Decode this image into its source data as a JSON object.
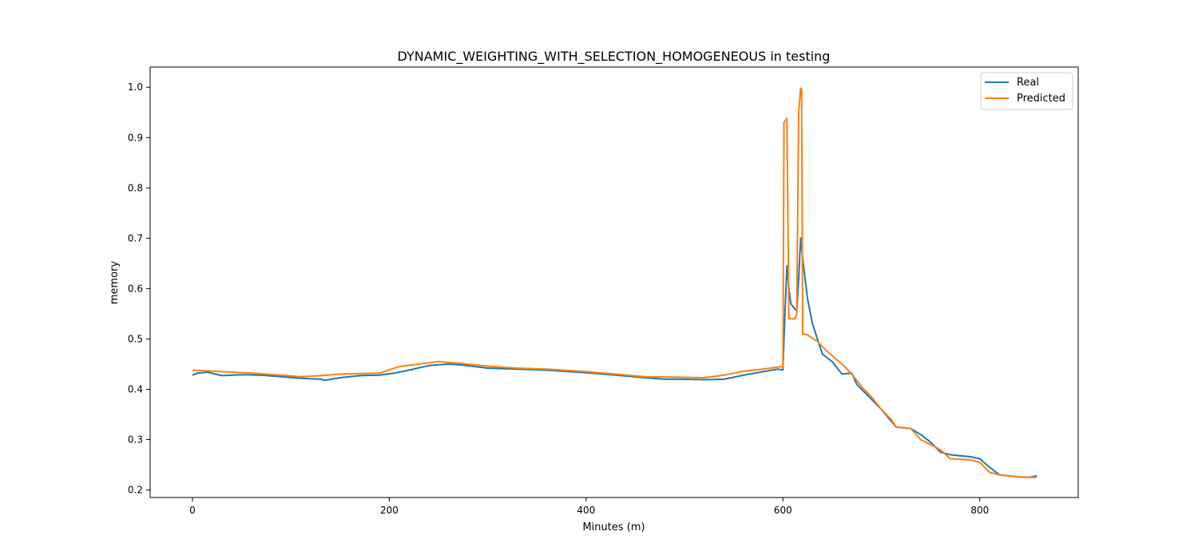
{
  "chart_data": {
    "type": "line",
    "title": "DYNAMIC_WEIGHTING_WITH_SELECTION_HOMOGENEOUS in testing",
    "xlabel": "Minutes (m)",
    "ylabel": "memory",
    "xlim": [
      -43,
      900
    ],
    "ylim": [
      0.185,
      1.04
    ],
    "xticks": [
      0,
      200,
      400,
      600,
      800
    ],
    "xtick_labels": [
      "0",
      "200",
      "400",
      "600",
      "800"
    ],
    "yticks": [
      0.2,
      0.3,
      0.4,
      0.5,
      0.6,
      0.7,
      0.8,
      0.9,
      1.0
    ],
    "ytick_labels": [
      "0.2",
      "0.3",
      "0.4",
      "0.5",
      "0.6",
      "0.7",
      "0.8",
      "0.9",
      "1.0"
    ],
    "grid": false,
    "legend_position": "top-right",
    "series": [
      {
        "name": "Real",
        "color": "#1f77b4",
        "points": [
          [
            0,
            0.428
          ],
          [
            5,
            0.432
          ],
          [
            15,
            0.434
          ],
          [
            30,
            0.427
          ],
          [
            50,
            0.429
          ],
          [
            70,
            0.428
          ],
          [
            90,
            0.425
          ],
          [
            110,
            0.422
          ],
          [
            130,
            0.42
          ],
          [
            135,
            0.418
          ],
          [
            150,
            0.423
          ],
          [
            170,
            0.427
          ],
          [
            190,
            0.428
          ],
          [
            205,
            0.432
          ],
          [
            220,
            0.438
          ],
          [
            240,
            0.447
          ],
          [
            260,
            0.45
          ],
          [
            275,
            0.448
          ],
          [
            300,
            0.442
          ],
          [
            330,
            0.44
          ],
          [
            360,
            0.438
          ],
          [
            400,
            0.433
          ],
          [
            430,
            0.428
          ],
          [
            460,
            0.423
          ],
          [
            480,
            0.42
          ],
          [
            500,
            0.42
          ],
          [
            520,
            0.419
          ],
          [
            540,
            0.42
          ],
          [
            560,
            0.428
          ],
          [
            580,
            0.435
          ],
          [
            595,
            0.44
          ],
          [
            600,
            0.438
          ],
          [
            602,
            0.55
          ],
          [
            604,
            0.645
          ],
          [
            606,
            0.6
          ],
          [
            608,
            0.57
          ],
          [
            612,
            0.56
          ],
          [
            614,
            0.555
          ],
          [
            616,
            0.62
          ],
          [
            618,
            0.7
          ],
          [
            620,
            0.66
          ],
          [
            625,
            0.58
          ],
          [
            630,
            0.53
          ],
          [
            635,
            0.5
          ],
          [
            640,
            0.47
          ],
          [
            650,
            0.455
          ],
          [
            660,
            0.43
          ],
          [
            670,
            0.432
          ],
          [
            675,
            0.41
          ],
          [
            690,
            0.38
          ],
          [
            700,
            0.36
          ],
          [
            715,
            0.325
          ],
          [
            730,
            0.322
          ],
          [
            740,
            0.31
          ],
          [
            750,
            0.295
          ],
          [
            760,
            0.275
          ],
          [
            770,
            0.27
          ],
          [
            780,
            0.268
          ],
          [
            790,
            0.266
          ],
          [
            800,
            0.262
          ],
          [
            810,
            0.245
          ],
          [
            820,
            0.23
          ],
          [
            830,
            0.228
          ],
          [
            840,
            0.226
          ],
          [
            850,
            0.225
          ],
          [
            858,
            0.228
          ]
        ]
      },
      {
        "name": "Predicted",
        "color": "#ff7f0e",
        "points": [
          [
            0,
            0.438
          ],
          [
            10,
            0.437
          ],
          [
            30,
            0.435
          ],
          [
            60,
            0.432
          ],
          [
            90,
            0.428
          ],
          [
            110,
            0.425
          ],
          [
            130,
            0.427
          ],
          [
            150,
            0.43
          ],
          [
            170,
            0.431
          ],
          [
            190,
            0.432
          ],
          [
            210,
            0.445
          ],
          [
            230,
            0.45
          ],
          [
            250,
            0.455
          ],
          [
            270,
            0.452
          ],
          [
            300,
            0.446
          ],
          [
            330,
            0.442
          ],
          [
            360,
            0.44
          ],
          [
            400,
            0.435
          ],
          [
            430,
            0.43
          ],
          [
            460,
            0.425
          ],
          [
            490,
            0.424
          ],
          [
            520,
            0.423
          ],
          [
            540,
            0.428
          ],
          [
            560,
            0.436
          ],
          [
            580,
            0.44
          ],
          [
            598,
            0.445
          ],
          [
            600,
            0.443
          ],
          [
            601,
            0.93
          ],
          [
            604,
            0.938
          ],
          [
            606,
            0.54
          ],
          [
            612,
            0.54
          ],
          [
            614,
            0.55
          ],
          [
            616,
            0.95
          ],
          [
            618,
            0.998
          ],
          [
            619,
            0.996
          ],
          [
            620,
            0.51
          ],
          [
            625,
            0.508
          ],
          [
            635,
            0.495
          ],
          [
            645,
            0.475
          ],
          [
            660,
            0.45
          ],
          [
            670,
            0.43
          ],
          [
            680,
            0.405
          ],
          [
            690,
            0.385
          ],
          [
            700,
            0.36
          ],
          [
            710,
            0.34
          ],
          [
            715,
            0.325
          ],
          [
            730,
            0.322
          ],
          [
            740,
            0.3
          ],
          [
            760,
            0.28
          ],
          [
            770,
            0.262
          ],
          [
            790,
            0.26
          ],
          [
            800,
            0.255
          ],
          [
            810,
            0.235
          ],
          [
            820,
            0.23
          ],
          [
            830,
            0.228
          ],
          [
            845,
            0.225
          ],
          [
            858,
            0.225
          ]
        ]
      }
    ]
  }
}
